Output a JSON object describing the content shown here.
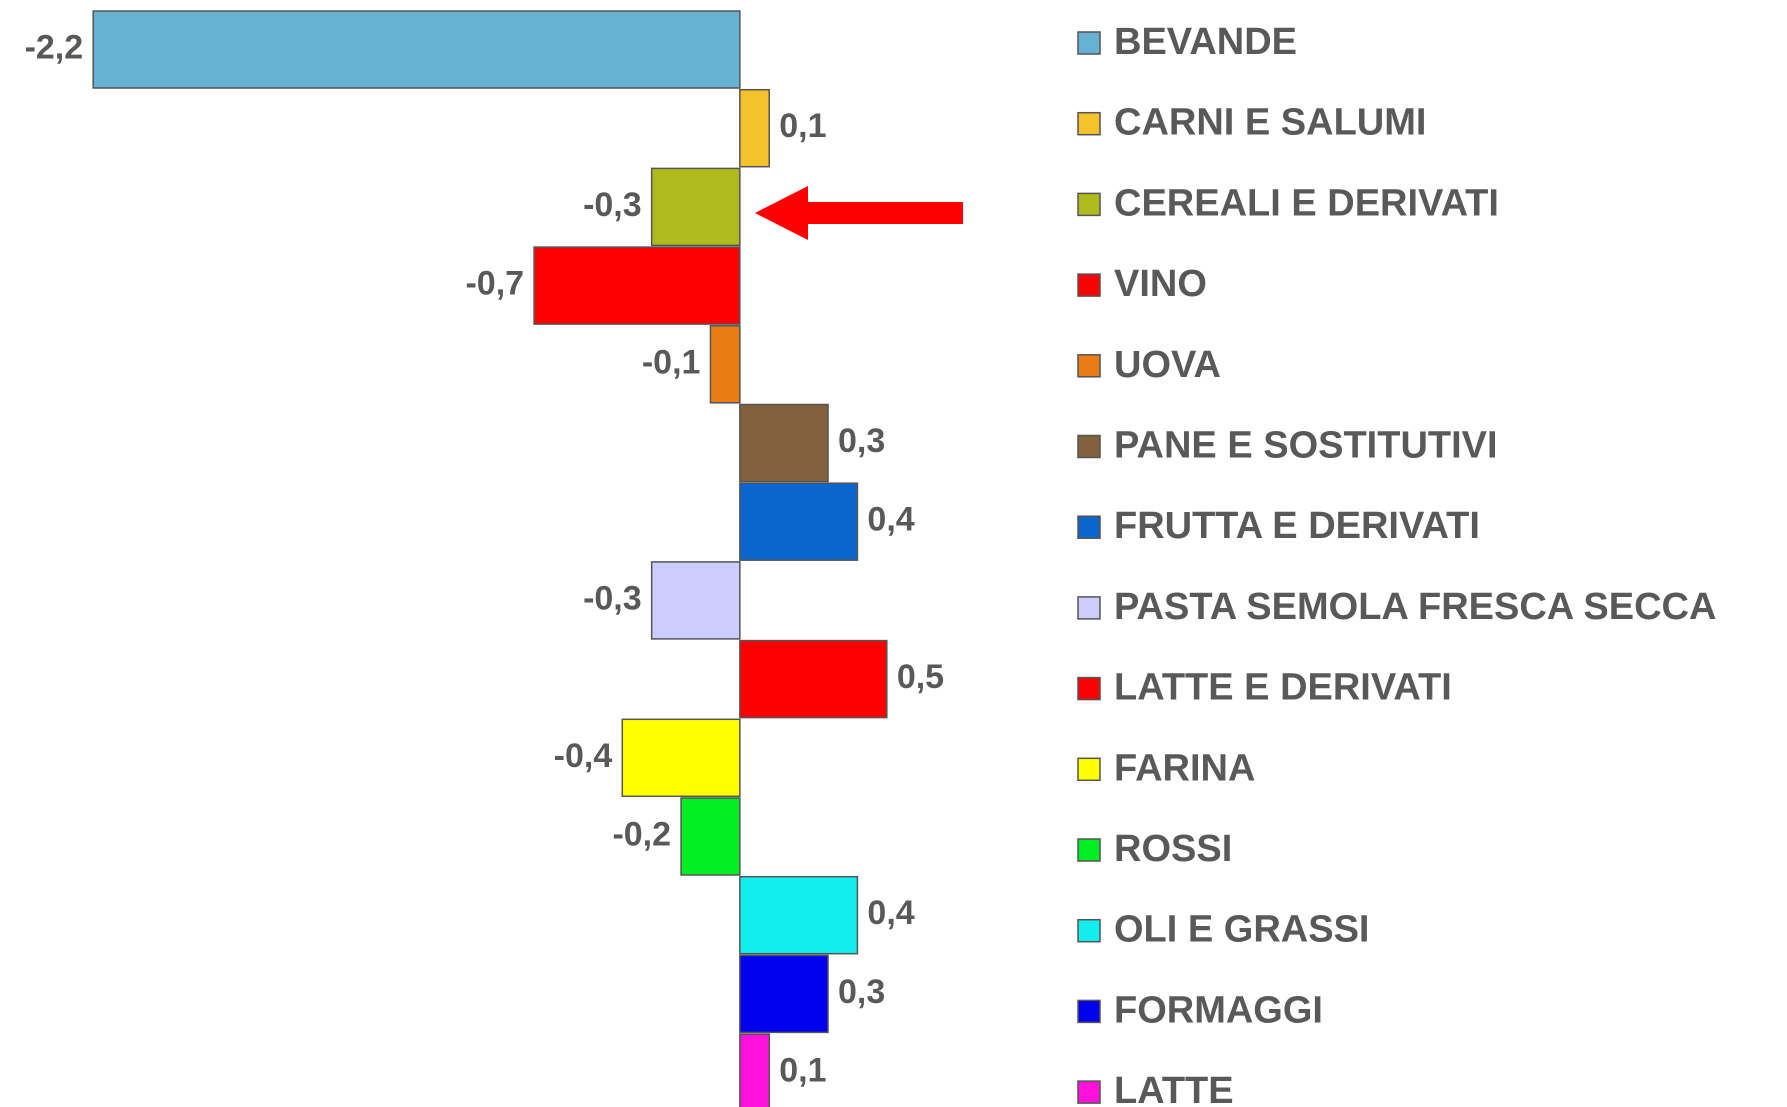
{
  "chart_data": {
    "type": "bar",
    "orientation": "horizontal",
    "categories": [
      "BEVANDE",
      "CARNI E SALUMI",
      "CEREALI E DERIVATI",
      "VINO",
      "UOVA",
      "PANE E SOSTITUTIVI",
      "FRUTTA E DERIVATI",
      "PASTA SEMOLA FRESCA SECCA",
      "LATTE E DERIVATI",
      "FARINA",
      "ROSSI",
      "OLI E GRASSI",
      "FORMAGGI",
      "LATTE"
    ],
    "values": [
      -2.2,
      0.1,
      -0.3,
      -0.7,
      -0.1,
      0.3,
      0.4,
      -0.3,
      0.5,
      -0.4,
      -0.2,
      0.4,
      0.3,
      0.1
    ],
    "value_labels": [
      "-2,2",
      "0,1",
      "-0,3",
      "-0,7",
      "-0,1",
      "0,3",
      "0,4",
      "-0,3",
      "0,5",
      "-0,4",
      "-0,2",
      "0,4",
      "0,3",
      "0,1"
    ],
    "colors": [
      "#67b1d3",
      "#f5c22b",
      "#afba1c",
      "#ff0000",
      "#ea7c14",
      "#82613f",
      "#0a65cc",
      "#ccccff",
      "#ff0000",
      "#ffff00",
      "#00ee22",
      "#11eeee",
      "#0000ee",
      "#ff11dd"
    ],
    "xlim": [
      -2.5,
      0.8
    ],
    "legend": "right"
  }
}
